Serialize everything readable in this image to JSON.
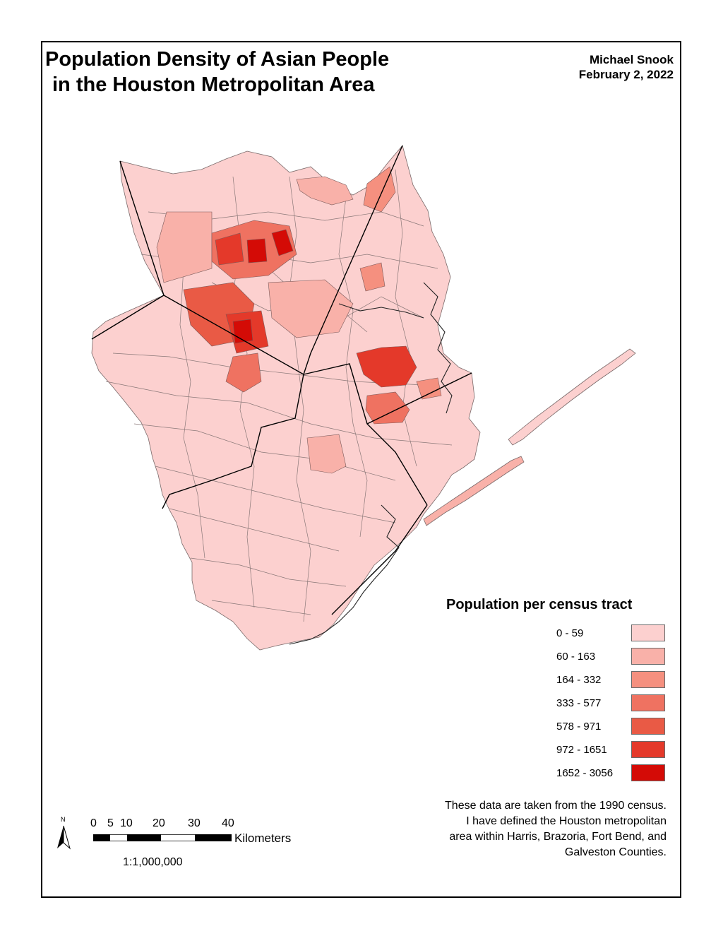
{
  "title": {
    "line1": "Population Density of Asian People",
    "line2": "in the Houston Metropolitan Area"
  },
  "author": {
    "name": "Michael Snook",
    "date": "February 2, 2022"
  },
  "legend": {
    "title": "Population per census tract",
    "classes": [
      {
        "label": "0 - 59",
        "color": "#fcd0cf"
      },
      {
        "label": "60 - 163",
        "color": "#f9b1a9"
      },
      {
        "label": "164 - 332",
        "color": "#f5907f"
      },
      {
        "label": "333 - 577",
        "color": "#ef7261"
      },
      {
        "label": "578 - 971",
        "color": "#e95a45"
      },
      {
        "label": "972 - 1651",
        "color": "#e4392a"
      },
      {
        "label": "1652 - 3056",
        "color": "#d40b06"
      }
    ]
  },
  "note": {
    "lines": [
      "These data are taken from the 1990 census.",
      "I have defined the Houston metropolitan",
      "area within Harris, Brazoria, Fort Bend, and",
      "Galveston Counties."
    ]
  },
  "north_arrow": {
    "label": "N"
  },
  "scale_bar": {
    "ticks": [
      "0",
      "5",
      "10",
      "20",
      "30",
      "40"
    ],
    "unit": "Kilometers",
    "ratio": "1:1,000,000"
  },
  "colors": {
    "tract_border": "#7a6a6a",
    "county_border": "#000000",
    "frame": "#000000"
  }
}
